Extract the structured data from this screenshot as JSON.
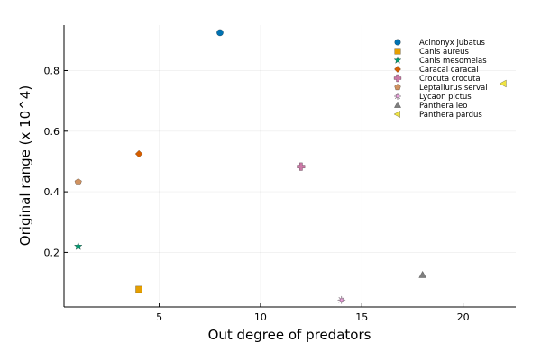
{
  "chart_data": {
    "type": "scatter",
    "title": "",
    "xlabel": "Out degree of predators",
    "ylabel": "Original range (x 10^4)",
    "xlim": [
      0.3,
      22.6
    ],
    "ylim": [
      0.02,
      0.95
    ],
    "x_ticks": [
      5,
      10,
      15,
      20
    ],
    "y_ticks": [
      0.2,
      0.4,
      0.6,
      0.8
    ],
    "grid": true,
    "legend_position": "top-right",
    "series": [
      {
        "name": "Acinonyx jubatus",
        "marker": "circle",
        "color": "#0072b2",
        "points": [
          {
            "x": 8,
            "y": 0.925
          }
        ]
      },
      {
        "name": "Canis aureus",
        "marker": "square",
        "color": "#e69f00",
        "points": [
          {
            "x": 4,
            "y": 0.078
          }
        ]
      },
      {
        "name": "Canis mesomelas",
        "marker": "star",
        "color": "#009e73",
        "points": [
          {
            "x": 1,
            "y": 0.22
          }
        ]
      },
      {
        "name": "Caracal caracal",
        "marker": "diamond",
        "color": "#d55e00",
        "points": [
          {
            "x": 4,
            "y": 0.525
          }
        ]
      },
      {
        "name": "Crocuta crocuta",
        "marker": "cross",
        "color": "#cc79a7",
        "points": [
          {
            "x": 12,
            "y": 0.483
          }
        ]
      },
      {
        "name": "Leptailurus serval",
        "marker": "pentagon",
        "color": "#d09260",
        "points": [
          {
            "x": 1,
            "y": 0.432
          }
        ]
      },
      {
        "name": "Lycaon pictus",
        "marker": "asterisk",
        "color": "#f0a0e0",
        "points": [
          {
            "x": 14,
            "y": 0.043
          }
        ]
      },
      {
        "name": "Panthera leo",
        "marker": "triangle",
        "color": "#7f7f7f",
        "points": [
          {
            "x": 18,
            "y": 0.125
          }
        ]
      },
      {
        "name": "Panthera pardus",
        "marker": "triangle-left",
        "color": "#f0e442",
        "points": [
          {
            "x": 22,
            "y": 0.757
          }
        ]
      }
    ]
  }
}
